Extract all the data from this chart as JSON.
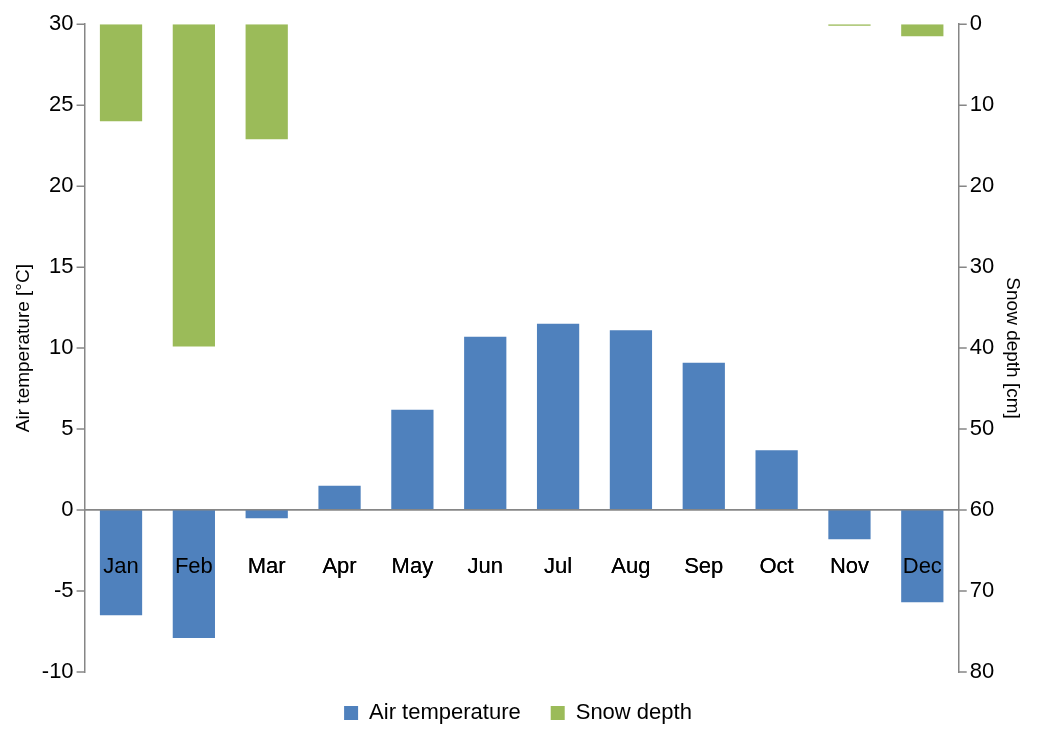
{
  "chart_data": {
    "type": "bar",
    "ylabel": "Air temperature [°C]",
    "y2label": "Snow depth [cm]",
    "categories": [
      "Jan",
      "Feb",
      "Mar",
      "Apr",
      "May",
      "Jun",
      "Jul",
      "Aug",
      "Sep",
      "Oct",
      "Nov",
      "Dec"
    ],
    "series": [
      {
        "name": "Air temperature",
        "color": "#4f81bd",
        "values": [
          -6.5,
          -7.9,
          -0.5,
          1.5,
          6.2,
          10.7,
          11.5,
          11.1,
          9.1,
          3.7,
          -1.8,
          -5.7
        ]
      },
      {
        "name": "Snow depth",
        "color": "#9bbb59",
        "axis": "y2",
        "values": [
          12,
          39.8,
          14.2,
          0,
          0,
          0,
          0,
          0,
          0,
          0,
          0.2,
          1.5
        ]
      }
    ],
    "ylim": [
      -10,
      30
    ],
    "yticks": [
      -10,
      -5,
      0,
      5,
      10,
      15,
      20,
      25,
      30
    ],
    "y2lim": [
      80,
      0
    ],
    "y2ticks": [
      0,
      10,
      20,
      30,
      40,
      50,
      60,
      70,
      80
    ],
    "grid": false,
    "legend": "bottom"
  }
}
